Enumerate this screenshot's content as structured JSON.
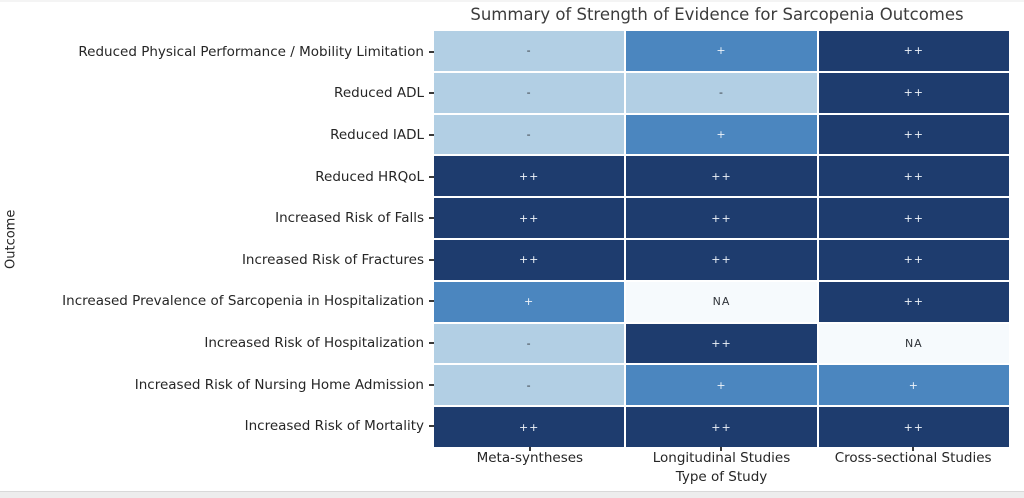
{
  "title": "Summary of Strength of Evidence for Sarcopenia Outcomes",
  "chart_data": {
    "type": "heatmap",
    "title": "Summary of Strength of Evidence for Sarcopenia Outcomes",
    "xlabel": "Type of Study",
    "ylabel": "Outcome",
    "columns": [
      "Meta-syntheses",
      "Longitudinal Studies",
      "Cross-sectional Studies"
    ],
    "rows": [
      {
        "label": "Reduced Physical Performance / Mobility Limitation",
        "values": [
          "-",
          "+",
          "++"
        ]
      },
      {
        "label": "Reduced ADL",
        "values": [
          "-",
          "-",
          "++"
        ]
      },
      {
        "label": "Reduced IADL",
        "values": [
          "-",
          "+",
          "++"
        ]
      },
      {
        "label": "Reduced HRQoL",
        "values": [
          "++",
          "++",
          "++"
        ]
      },
      {
        "label": "Increased Risk of Falls",
        "values": [
          "++",
          "++",
          "++"
        ]
      },
      {
        "label": "Increased Risk of Fractures",
        "values": [
          "++",
          "++",
          "++"
        ]
      },
      {
        "label": "Increased Prevalence of Sarcopenia in Hospitalization",
        "values": [
          "+",
          "NA",
          "++"
        ]
      },
      {
        "label": "Increased Risk of Hospitalization",
        "values": [
          "-",
          "++",
          "NA"
        ]
      },
      {
        "label": "Increased Risk of Nursing Home Admission",
        "values": [
          "-",
          "+",
          "+"
        ]
      },
      {
        "label": "Increased Risk of Mortality",
        "values": [
          "++",
          "++",
          "++"
        ]
      }
    ],
    "value_scale_note": "NA < - < + < ++ mapped to sequential blues",
    "colors": {
      "cell_NA": "#f6fafd",
      "cell_minus": "#b2cfe4",
      "cell_plus": "#4b86bf",
      "cell_plusplus": "#1e3c6e",
      "text_dark": "#30343a",
      "text_light": "#eef3f9",
      "grid_lines": "#ffffff",
      "title_text": "#3c3c3c",
      "axis_text": "#262626"
    },
    "layout": {
      "legend": "none",
      "grid": "white 2px separators",
      "annotations": "each cell labeled with its strength value"
    }
  }
}
